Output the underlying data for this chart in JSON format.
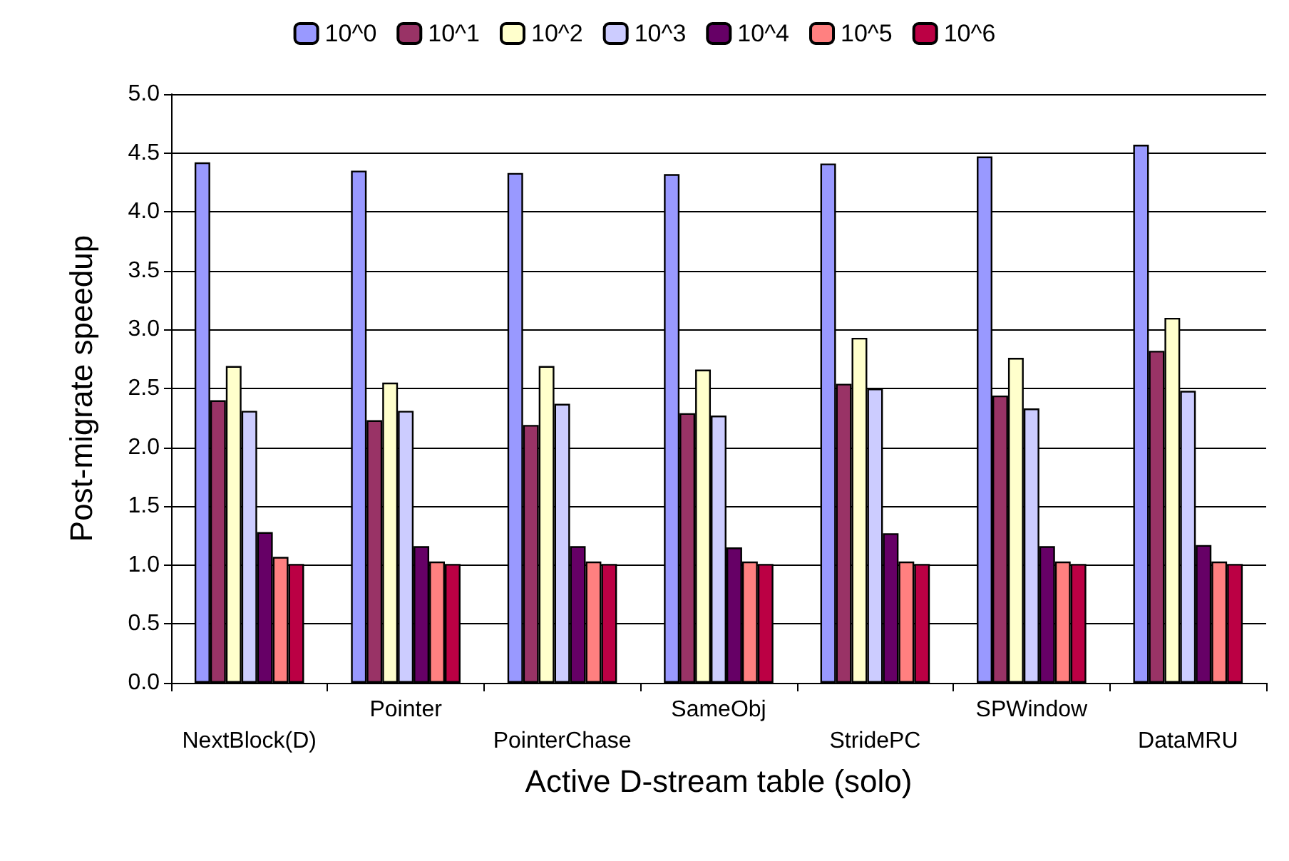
{
  "chart_data": {
    "type": "bar",
    "xlabel": "Active D-stream table (solo)",
    "ylabel": "Post-migrate speedup",
    "categories": [
      "NextBlock(D)",
      "Pointer",
      "PointerChase",
      "SameObj",
      "StridePC",
      "SPWindow",
      "DataMRU"
    ],
    "series": [
      {
        "name": "10^0",
        "color": "#9999ff",
        "values": [
          4.42,
          4.35,
          4.33,
          4.32,
          4.41,
          4.47,
          4.57
        ]
      },
      {
        "name": "10^1",
        "color": "#993366",
        "values": [
          2.4,
          2.23,
          2.19,
          2.29,
          2.54,
          2.44,
          2.82
        ]
      },
      {
        "name": "10^2",
        "color": "#ffffcc",
        "values": [
          2.69,
          2.55,
          2.69,
          2.66,
          2.93,
          2.76,
          3.1
        ]
      },
      {
        "name": "10^3",
        "color": "#ccccff",
        "values": [
          2.31,
          2.31,
          2.37,
          2.27,
          2.5,
          2.33,
          2.48
        ]
      },
      {
        "name": "10^4",
        "color": "#660066",
        "values": [
          1.28,
          1.16,
          1.16,
          1.15,
          1.27,
          1.16,
          1.17
        ]
      },
      {
        "name": "10^5",
        "color": "#ff8080",
        "values": [
          1.07,
          1.03,
          1.03,
          1.03,
          1.03,
          1.03,
          1.03
        ]
      },
      {
        "name": "10^6",
        "color": "#bb0044",
        "values": [
          1.01,
          1.01,
          1.01,
          1.01,
          1.01,
          1.01,
          1.01
        ]
      }
    ],
    "ylim": [
      0,
      5
    ],
    "yticks": [
      {
        "value": 0,
        "label": "0.0"
      },
      0.5,
      {
        "value": 1,
        "label": "1.0"
      },
      1.5,
      {
        "value": 2,
        "label": "2.0"
      },
      2.5,
      {
        "value": 3,
        "label": "3.0"
      },
      3.5,
      {
        "value": 4,
        "label": "4.0"
      },
      4.5,
      {
        "value": 5,
        "label": "5.0"
      }
    ],
    "grid": "y",
    "legend": "top"
  }
}
